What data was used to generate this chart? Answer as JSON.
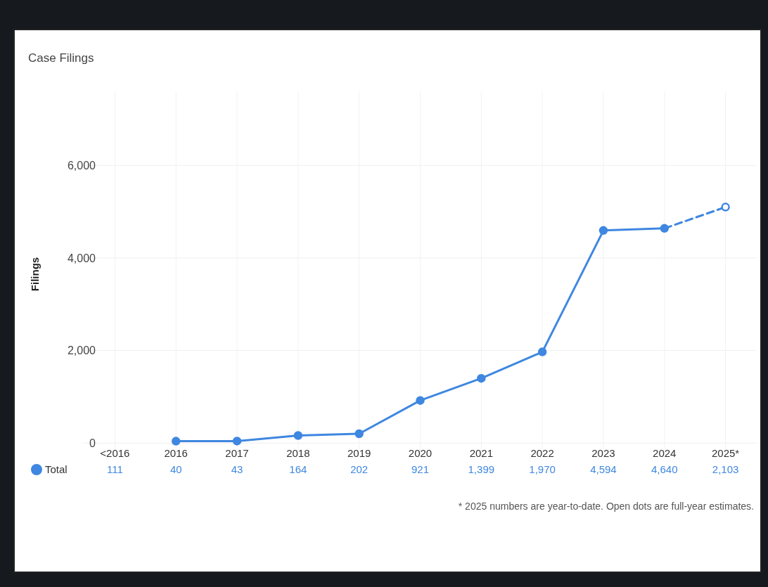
{
  "chart_data": {
    "type": "line",
    "title": "Case Filings",
    "ylabel": "Filings",
    "categories": [
      "<2016",
      "2016",
      "2017",
      "2018",
      "2019",
      "2020",
      "2021",
      "2022",
      "2023",
      "2024",
      "2025*"
    ],
    "series": [
      {
        "name": "Total",
        "color": "#3f87e0",
        "line_style": "solid",
        "marker": "circle",
        "values": [
          null,
          40,
          43,
          164,
          202,
          921,
          1399,
          1970,
          4594,
          4640,
          null
        ],
        "value_labels": [
          "111",
          "40",
          "43",
          "164",
          "202",
          "921",
          "1,399",
          "1,970",
          "4,594",
          "4,640",
          "2,103"
        ]
      },
      {
        "color": "#3f87e0",
        "line_style": "dashed",
        "marker": "circle",
        "values": [
          null,
          null,
          null,
          null,
          null,
          null,
          null,
          null,
          null,
          4640,
          5100
        ]
      }
    ],
    "ylim": [
      -300,
      7600
    ],
    "yticks": [
      {
        "value": 0,
        "label": "0"
      },
      {
        "value": 2000,
        "label": "2,000"
      },
      {
        "value": 4000,
        "label": "4,000"
      },
      {
        "value": 6000,
        "label": "6,000"
      }
    ],
    "grid": true,
    "legend": "bottom left",
    "annotations": [
      "* 2025 numbers are year-to-date. Open dots are full-year estimates."
    ]
  }
}
